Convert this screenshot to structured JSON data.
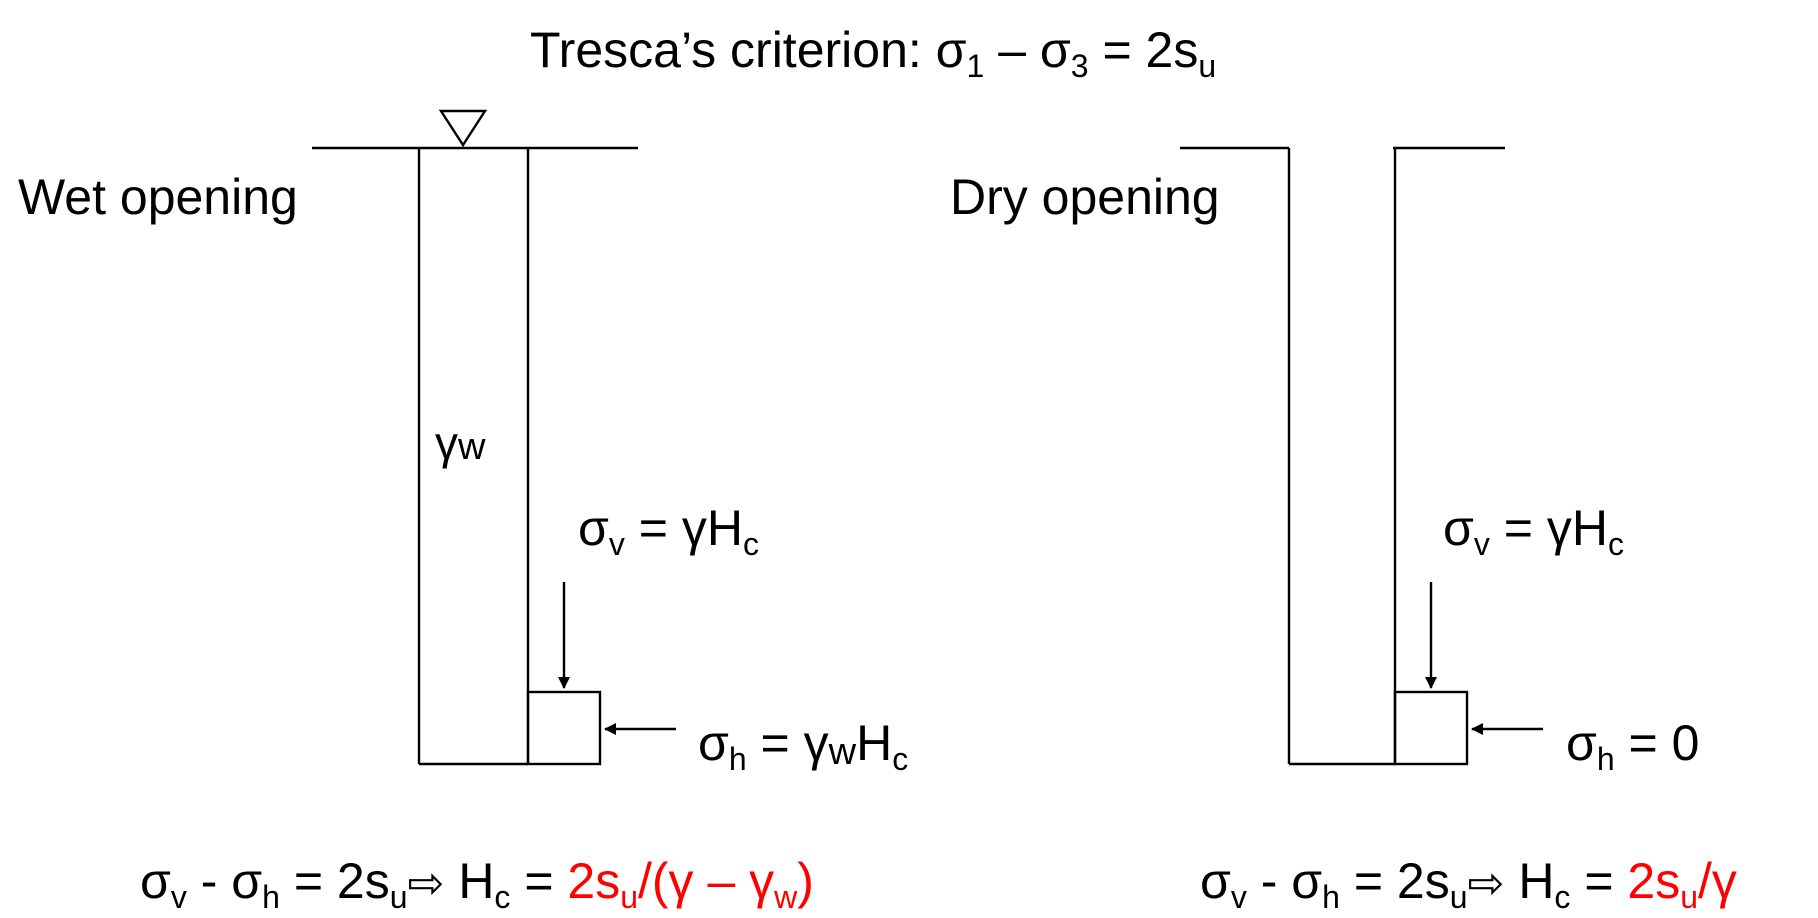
{
  "title": {
    "label": "Tresca’s criterion: ",
    "sigma": "σ",
    "sub1": "1",
    "dash": " – ",
    "sub3": "3",
    "rhs": " = 2s",
    "sub_u": "u"
  },
  "wet": {
    "label": "Wet opening",
    "gamma": "γ",
    "gamma_sub": "w",
    "sv_sigma": "σ",
    "sv_sub": "v",
    "sv_rhs": " = γH",
    "sv_rhs_sub": "c",
    "sh_sigma": "σ",
    "sh_sub": "h",
    "sh_eq": " = γ",
    "sh_gsub": "w",
    "sh_H": "H",
    "sh_Hsub": "c",
    "eq_sv": "σ",
    "eq_sv_sub": "v",
    "eq_minus": " - σ",
    "eq_sh_sub": "h",
    "eq_2su": " = 2s",
    "eq_u": "u",
    "eq_arrow": "⇨",
    "eq_H": " H",
    "eq_H_sub": "c",
    "eq_equals": " = ",
    "eq_red_1": "2s",
    "eq_red_u": "u",
    "eq_red_2": "/(γ – γ",
    "eq_red_w": "w",
    "eq_red_3": ")"
  },
  "dry": {
    "label": "Dry opening",
    "sv_sigma": "σ",
    "sv_sub": "v",
    "sv_rhs": " = γH",
    "sv_rhs_sub": "c",
    "sh_sigma": "σ",
    "sh_sub": "h",
    "sh_rhs": " = 0",
    "eq_sv": "σ",
    "eq_sv_sub": "v",
    "eq_minus": " - σ",
    "eq_sh_sub": "h",
    "eq_2su": " = 2s",
    "eq_u": "u",
    "eq_arrow": "⇨",
    "eq_H": " H",
    "eq_H_sub": "c",
    "eq_equals": " = ",
    "eq_red_1": "2s",
    "eq_red_u": "u",
    "eq_red_2": "/γ"
  },
  "colors": {
    "line": "#000000",
    "text": "#000000",
    "highlight": "#ff0000"
  }
}
